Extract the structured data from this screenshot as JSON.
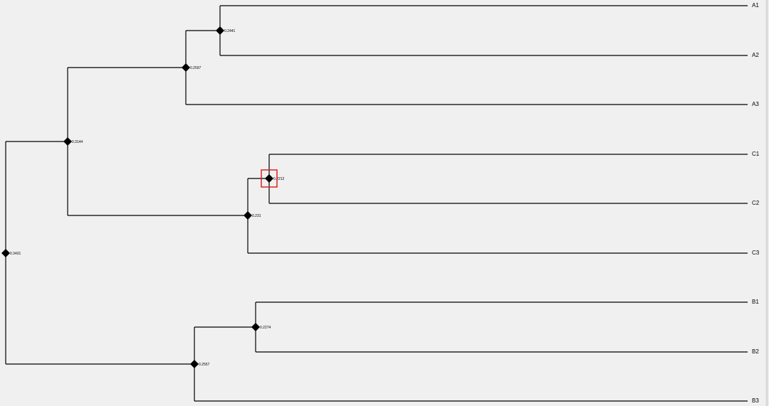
{
  "leaves": [
    "A1",
    "A2",
    "A3",
    "C1",
    "C2",
    "C3",
    "B1",
    "B2",
    "B3"
  ],
  "nodes": [
    {
      "label": "0.2441"
    },
    {
      "label": "0.2597"
    },
    {
      "label": "0.3144"
    },
    {
      "label": "0.2212"
    },
    {
      "label": "0.231"
    },
    {
      "label": "0.3431"
    },
    {
      "label": "0.2274"
    },
    {
      "label": "0.2557"
    }
  ]
}
